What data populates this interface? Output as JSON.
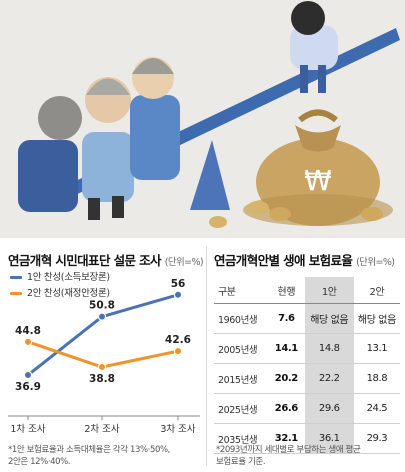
{
  "left_panel": {
    "title": "연금개혁 시민대표단 설문 조사",
    "unit": "(단위=%)",
    "footnote_lines": [
      "*1안 보험료율과 소득대체율은 각각 13%·50%,",
      "2안은 12%·40%."
    ]
  },
  "right_panel": {
    "title": "연금개혁안별 생애 보험료율",
    "unit": "(단위=%)",
    "footnote_lines": [
      "*2093년까지 세대별로 부담하는 생애 평균",
      "보험료율 기준."
    ]
  },
  "chart_data": {
    "type": "line",
    "categories": [
      "1차 조사",
      "2차 조사",
      "3차 조사"
    ],
    "series": [
      {
        "name": "1안 찬성(소득보장론)",
        "color": "#4a72b4",
        "values": [
          36.9,
          50.8,
          56
        ]
      },
      {
        "name": "2안 찬성(재정안정론)",
        "color": "#f0932b",
        "values": [
          44.8,
          38.8,
          42.6
        ]
      }
    ],
    "value_labels": [
      [
        "36.9",
        "50.8",
        "56"
      ],
      [
        "44.8",
        "38.8",
        "42.6"
      ]
    ],
    "ylim": [
      30,
      60
    ],
    "grid": false,
    "legend": "top-left"
  },
  "table": {
    "type": "table",
    "headers": [
      "구분",
      "현행",
      "1안",
      "2안"
    ],
    "rows": [
      {
        "label": "1960년생",
        "current": "7.6",
        "plan1": "해당 없음",
        "plan2": "해당 없음"
      },
      {
        "label": "2005년생",
        "current": "14.1",
        "plan1": "14.8",
        "plan2": "13.1"
      },
      {
        "label": "2015년생",
        "current": "20.2",
        "plan1": "22.2",
        "plan2": "18.8"
      },
      {
        "label": "2025년생",
        "current": "26.6",
        "plan1": "29.6",
        "plan2": "24.5"
      },
      {
        "label": "2035년생",
        "current": "32.1",
        "plan1": "36.1",
        "plan2": "29.3"
      }
    ]
  },
  "illustration": {
    "coin_symbol": "₩"
  },
  "colors": {
    "plan1": "#4a72b4",
    "plan2": "#f0932b",
    "highlight": "#d9d9d9"
  }
}
